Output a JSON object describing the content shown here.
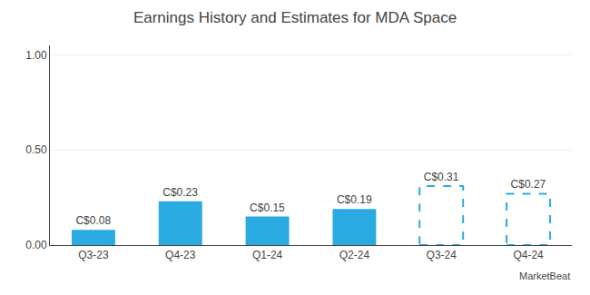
{
  "chart_data": {
    "type": "bar",
    "title": "Earnings History and Estimates for MDA Space",
    "categories": [
      "Q3-23",
      "Q4-23",
      "Q1-24",
      "Q2-24",
      "Q3-24",
      "Q4-24"
    ],
    "series": [
      {
        "color": "#29ABE2",
        "line_style": "solid",
        "values": [
          0.08,
          0.23,
          0.15,
          0.19,
          null,
          null
        ],
        "value_labels": [
          "C$0.08",
          "C$0.23",
          "C$0.15",
          "C$0.19",
          null,
          null
        ]
      },
      {
        "color": "#29ABE2",
        "line_style": "dashed",
        "values": [
          null,
          null,
          null,
          null,
          0.31,
          0.27
        ],
        "value_labels": [
          null,
          null,
          null,
          null,
          "C$0.31",
          "C$0.27"
        ]
      }
    ],
    "ylim": [
      0,
      1.05
    ],
    "yticks": [
      {
        "value": 0.0,
        "label": "0.00"
      },
      {
        "value": 0.5,
        "label": "0.50"
      },
      {
        "value": 1.0,
        "label": "1.00"
      }
    ],
    "grid": true,
    "data_labels": true,
    "annotations": [
      "MarketBeat"
    ]
  }
}
